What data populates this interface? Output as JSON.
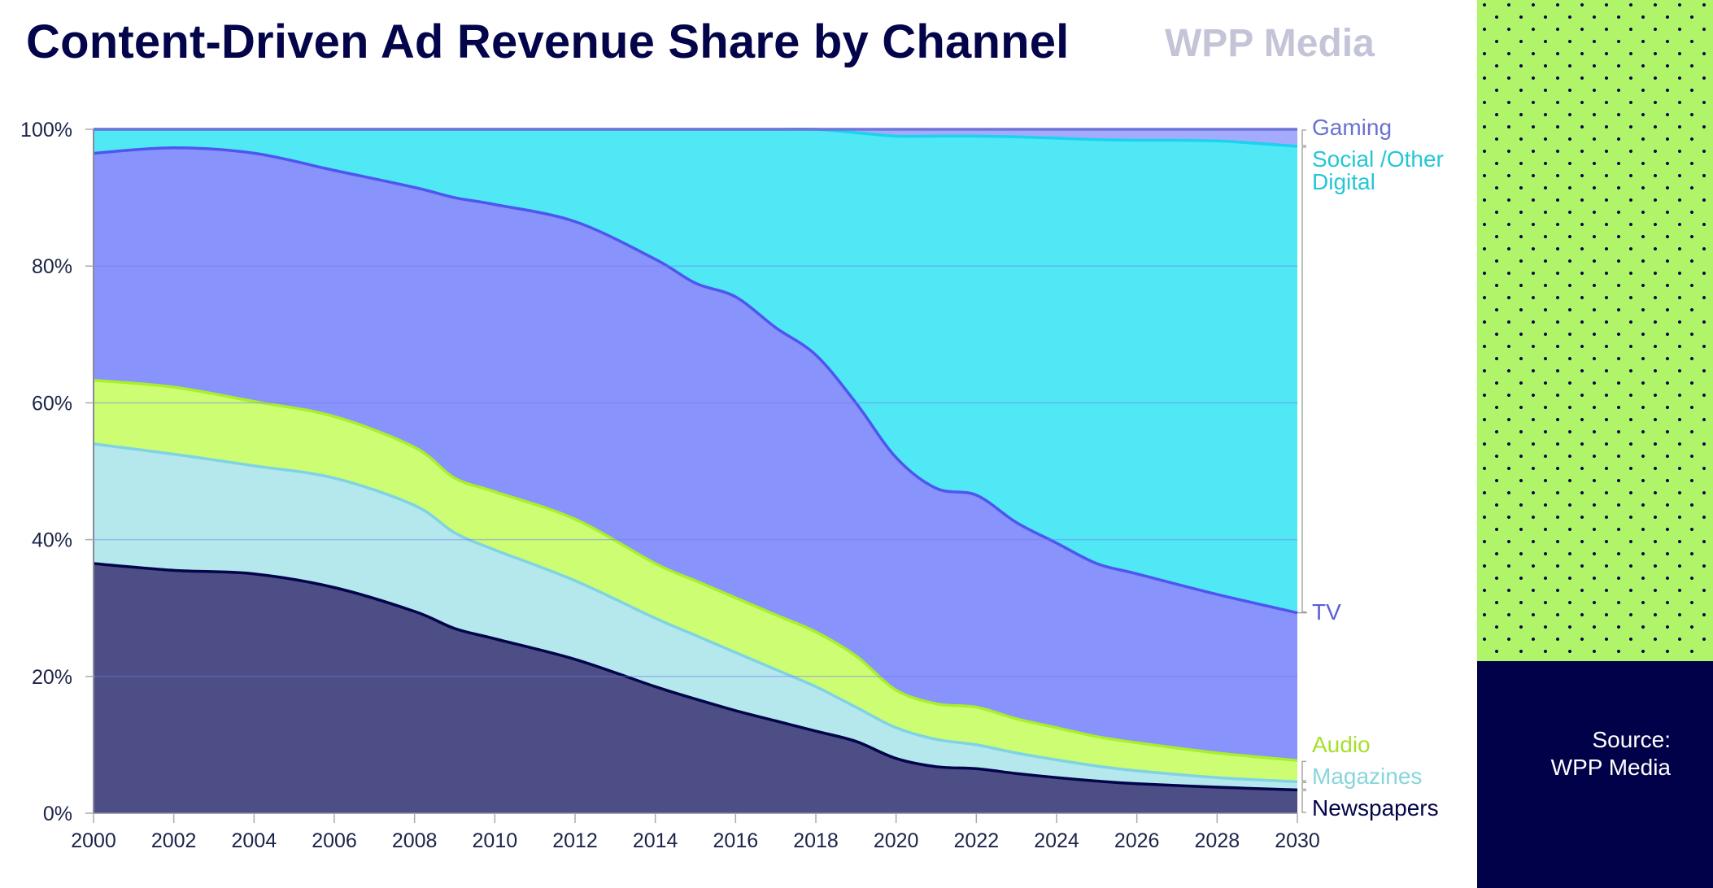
{
  "header": {
    "title": "Content-Driven Ad Revenue Share by Channel",
    "brand": "WPP Media"
  },
  "source": {
    "line1": "Source:",
    "line2": "WPP Media"
  },
  "colors": {
    "title": "#03044a",
    "brand": "#c4c4d8",
    "panel_green": "#b0f46a",
    "panel_navy": "#01014a"
  },
  "chart_data": {
    "type": "area",
    "stacked": true,
    "normalized": true,
    "title": "Content-Driven Ad Revenue Share by Channel",
    "xlabel": "",
    "ylabel": "",
    "xlim": [
      2000,
      2030
    ],
    "ylim": [
      0,
      100
    ],
    "x_ticks": [
      "2000",
      "2002",
      "2004",
      "2006",
      "2008",
      "2010",
      "2012",
      "2014",
      "2016",
      "2018",
      "2020",
      "2022",
      "2024",
      "2026",
      "2028",
      "2030"
    ],
    "y_ticks": [
      "0%",
      "20%",
      "40%",
      "60%",
      "80%",
      "100%"
    ],
    "grid": true,
    "legend": "direct-labels-right",
    "x": [
      2000,
      2002,
      2004,
      2006,
      2008,
      2009,
      2010,
      2012,
      2014,
      2015,
      2016,
      2017,
      2018,
      2019,
      2020,
      2021,
      2022,
      2023,
      2024,
      2025,
      2026,
      2028,
      2030
    ],
    "series": [
      {
        "name": "Newspapers",
        "color": "#4d4e85",
        "line_color": "#03044a",
        "label_color": "#03044a",
        "values": [
          36.5,
          35.5,
          35.0,
          33.0,
          29.5,
          27.0,
          25.5,
          22.5,
          18.5,
          16.7,
          15.0,
          13.5,
          12.0,
          10.5,
          8.0,
          6.8,
          6.5,
          5.8,
          5.2,
          4.7,
          4.3,
          3.8,
          3.4
        ]
      },
      {
        "name": "Magazines",
        "color": "#b4e8ec",
        "line_color": "#7fd3e3",
        "label_color": "#86d6dc",
        "values": [
          17.5,
          17.0,
          15.8,
          16.0,
          15.5,
          14.0,
          13.0,
          11.5,
          10.0,
          9.3,
          8.5,
          7.5,
          6.5,
          5.0,
          4.5,
          4.0,
          3.5,
          3.0,
          2.6,
          2.2,
          1.9,
          1.4,
          1.2
        ]
      },
      {
        "name": "Audio",
        "color": "#ccfd73",
        "line_color": "#a8f02a",
        "label_color": "#a6e02c",
        "values": [
          9.3,
          9.8,
          9.4,
          9.0,
          8.5,
          8.0,
          8.5,
          9.0,
          8.0,
          8.0,
          8.0,
          8.0,
          8.0,
          7.5,
          5.5,
          5.2,
          5.5,
          5.0,
          4.7,
          4.3,
          4.1,
          3.6,
          3.1
        ]
      },
      {
        "name": "TV",
        "color": "#8893fc",
        "line_color": "#4f55ef",
        "label_color": "#5a5fd6",
        "values": [
          33.2,
          35.0,
          36.3,
          36.0,
          38.0,
          41.0,
          42.0,
          43.5,
          44.5,
          43.5,
          44.0,
          42.0,
          40.5,
          37.0,
          34.0,
          31.5,
          31.0,
          28.7,
          27.0,
          25.3,
          24.7,
          23.2,
          21.6
        ]
      },
      {
        "name": "Social /Other Digital",
        "color": "#50e8f5",
        "line_color": "#19d3ef",
        "label_color": "#25c6d6",
        "values": [
          3.5,
          2.7,
          3.5,
          6.0,
          8.5,
          10.0,
          11.0,
          13.5,
          19.0,
          22.5,
          24.5,
          29.0,
          33.0,
          39.5,
          47.0,
          51.5,
          52.5,
          56.4,
          59.2,
          62.0,
          63.4,
          66.3,
          68.2
        ]
      },
      {
        "name": "Gaming",
        "color": "#a4aafc",
        "line_color": "#6e74d9",
        "label_color": "#6a71cf",
        "values": [
          0,
          0,
          0,
          0,
          0,
          0,
          0,
          0,
          0,
          0,
          0,
          0,
          0,
          0.5,
          1.0,
          1.0,
          1.0,
          1.1,
          1.3,
          1.5,
          1.6,
          1.7,
          2.5
        ]
      }
    ],
    "end_labels": [
      {
        "series": "Gaming",
        "text": "Gaming"
      },
      {
        "series": "Social /Other Digital",
        "text": "Social /Other Digital"
      },
      {
        "series": "TV",
        "text": "TV"
      },
      {
        "series": "Audio",
        "text": "Audio"
      },
      {
        "series": "Magazines",
        "text": "Magazines"
      },
      {
        "series": "Newspapers",
        "text": "Newspapers"
      }
    ]
  }
}
